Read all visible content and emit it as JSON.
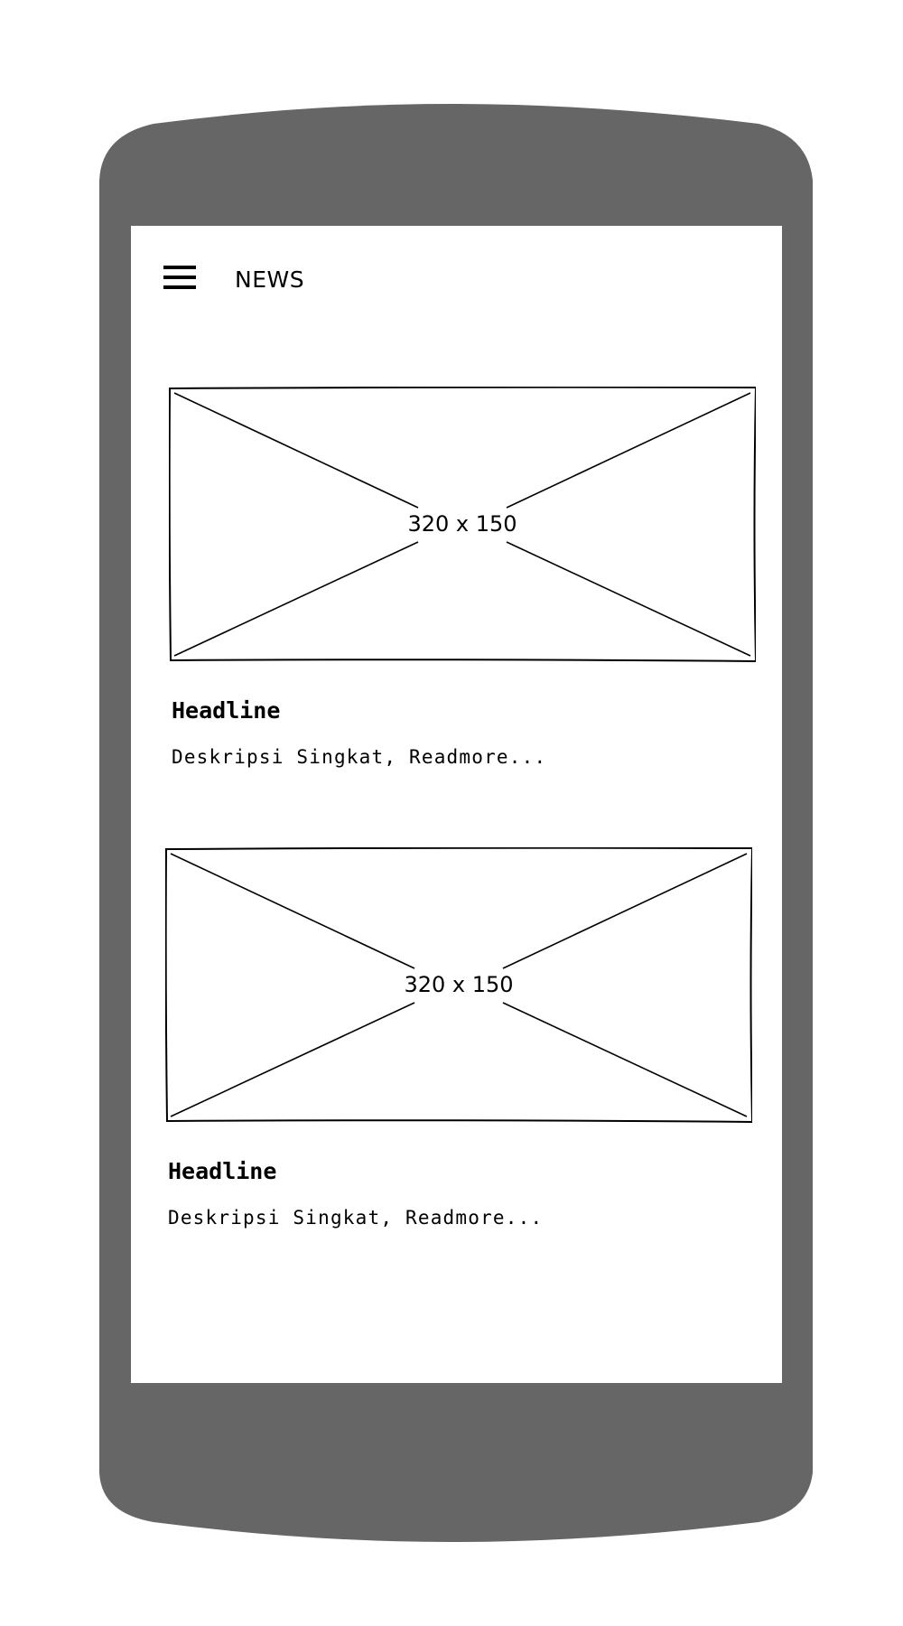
{
  "app_bar": {
    "title": "NEWS",
    "menu_icon": "hamburger-menu-icon"
  },
  "articles": [
    {
      "image_label": "320 x 150",
      "headline": "Headline",
      "description": "Deskripsi Singkat, Readmore..."
    },
    {
      "image_label": "320 x 150",
      "headline": "Headline",
      "description": "Deskripsi Singkat, Readmore..."
    }
  ],
  "colors": {
    "device_frame": "#666666",
    "screen_background": "#ffffff",
    "text": "#000000"
  }
}
